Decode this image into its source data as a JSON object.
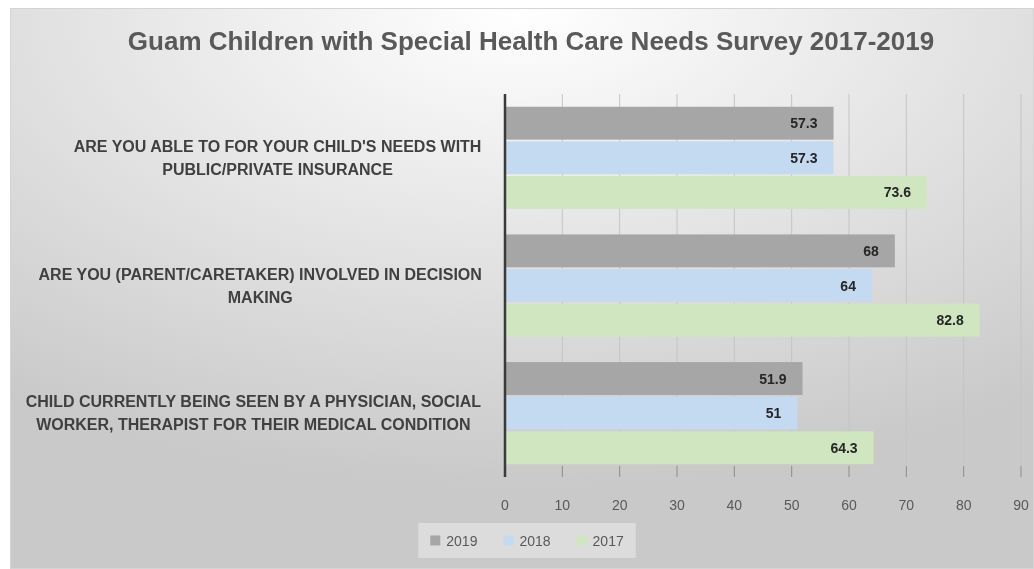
{
  "chart_data": {
    "type": "bar",
    "orientation": "horizontal",
    "title": "Guam Children with Special Health Care Needs Survey 2017-2019",
    "categories": [
      "ARE YOU ABLE TO FOR YOUR CHILD'S NEEDS WITH PUBLIC/PRIVATE INSURANCE",
      "ARE YOU (PARENT/CARETAKER) INVOLVED IN DECISION MAKING",
      "CHILD CURRENTLY BEING SEEN BY A PHYSICIAN, SOCIAL WORKER, THERAPIST FOR THEIR MEDICAL CONDITION"
    ],
    "series": [
      {
        "name": "2019",
        "color": "#a6a6a6",
        "values": [
          57.3,
          68,
          51.9
        ]
      },
      {
        "name": "2018",
        "color": "#c4daf1",
        "values": [
          57.3,
          64,
          51
        ]
      },
      {
        "name": "2017",
        "color": "#d0e6c1",
        "values": [
          73.6,
          82.8,
          64.3
        ]
      }
    ],
    "xlim": [
      0,
      90
    ],
    "xticks": [
      0,
      10,
      20,
      30,
      40,
      50,
      60,
      70,
      80,
      90
    ],
    "grid": "x",
    "legend": "bottom",
    "data_labels": true
  }
}
